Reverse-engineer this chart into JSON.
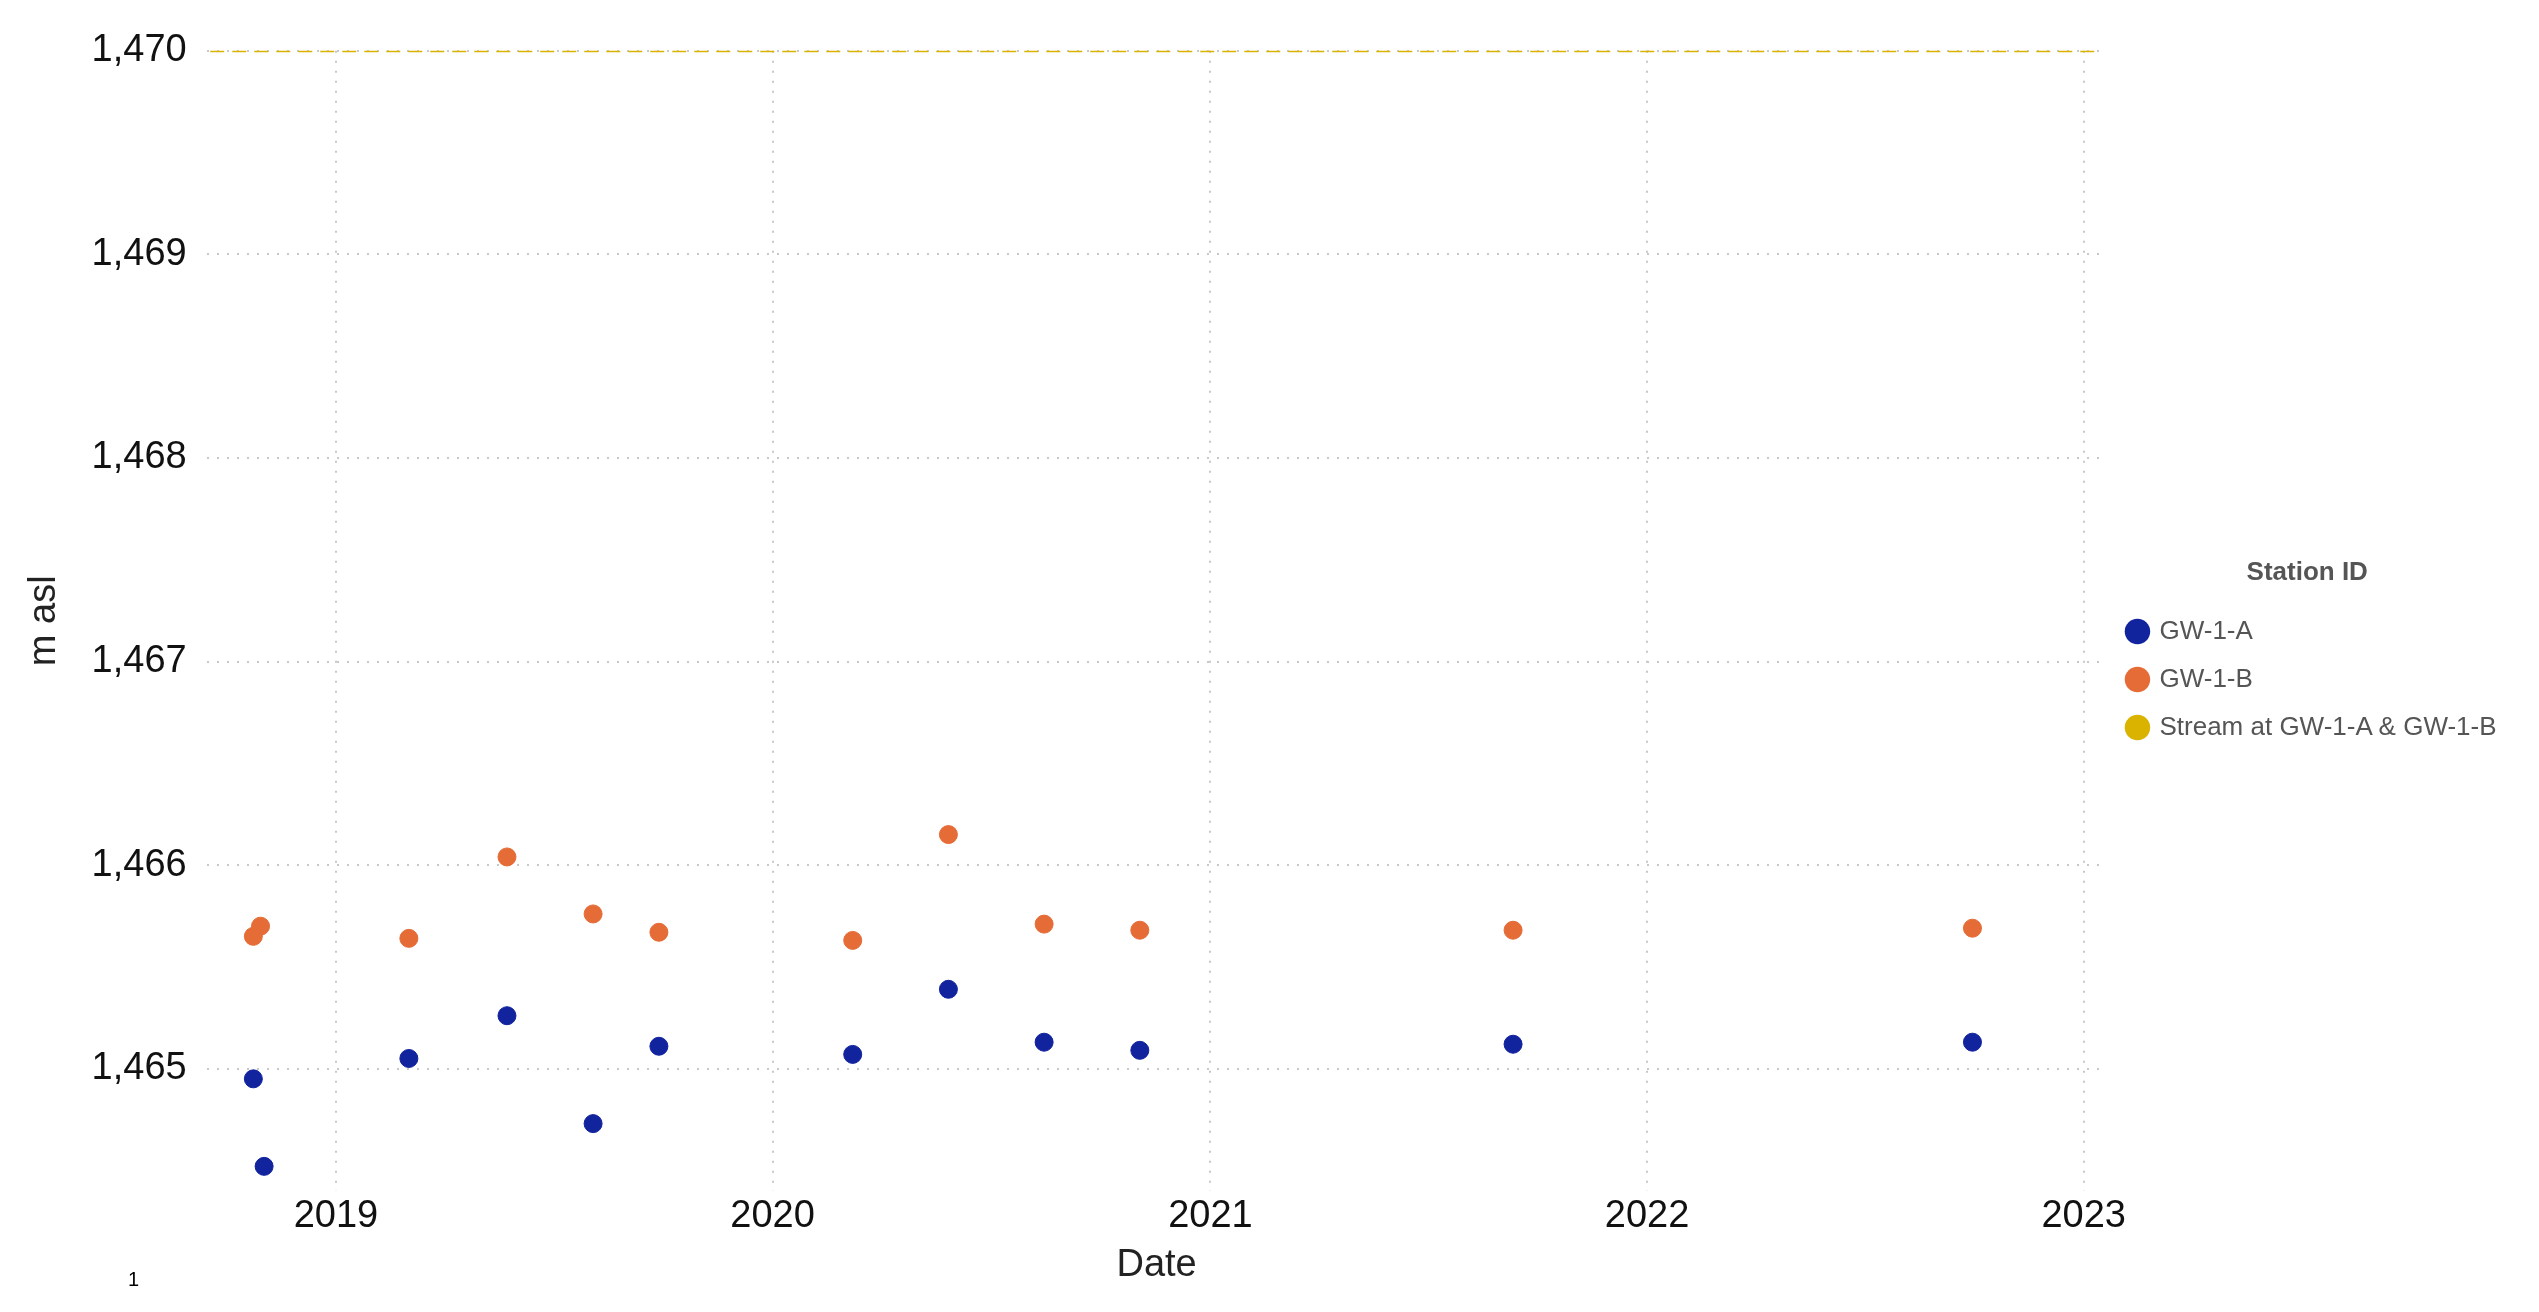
{
  "chart_data": {
    "type": "scatter",
    "xlabel": "Date",
    "ylabel": "m asl",
    "legend_title": "Station ID",
    "series": [
      {
        "name": "GW-1-A",
        "color": "#12239e",
        "x": [
          "2018-10-24",
          "2018-11-02",
          "2019-03-03",
          "2019-05-24",
          "2019-08-04",
          "2019-09-28",
          "2020-03-08",
          "2020-05-27",
          "2020-08-15",
          "2020-11-03",
          "2021-09-11",
          "2022-09-30"
        ],
        "values": [
          1464.95,
          1464.52,
          1465.05,
          1465.26,
          1464.73,
          1465.11,
          1465.07,
          1465.39,
          1465.13,
          1465.09,
          1465.12,
          1465.13
        ]
      },
      {
        "name": "GW-1-B",
        "color": "#e66c37",
        "x": [
          "2018-10-24",
          "2018-10-30",
          "2019-03-03",
          "2019-05-24",
          "2019-08-04",
          "2019-09-28",
          "2020-03-08",
          "2020-05-27",
          "2020-08-15",
          "2020-11-03",
          "2021-09-11",
          "2022-09-30"
        ],
        "values": [
          1465.65,
          1465.7,
          1465.64,
          1466.04,
          1465.76,
          1465.67,
          1465.63,
          1466.15,
          1465.71,
          1465.68,
          1465.68,
          1465.69
        ]
      },
      {
        "name": "Stream at GW-1-A & GW-1-B",
        "color": "#d9b300",
        "type": "line",
        "line_style": "dashed",
        "marker": "none",
        "x": [
          "2018-09-18",
          "2023-01-16"
        ],
        "values": [
          1470,
          1470
        ]
      }
    ],
    "xlim": [
      "2018-09-15",
      "2023-01-20"
    ],
    "xticks": [
      {
        "value": "2019-01-01",
        "label": "2019"
      },
      {
        "value": "2020-01-01",
        "label": "2020"
      },
      {
        "value": "2021-01-01",
        "label": "2021"
      },
      {
        "value": "2022-01-01",
        "label": "2022"
      },
      {
        "value": "2023-01-01",
        "label": "2023"
      }
    ],
    "ylim": [
      1464.4,
      1470
    ],
    "yticks": [
      {
        "value": 1465,
        "label": "1,465"
      },
      {
        "value": 1466,
        "label": "1,466"
      },
      {
        "value": 1467,
        "label": "1,467"
      },
      {
        "value": 1468,
        "label": "1,468"
      },
      {
        "value": 1469,
        "label": "1,469"
      },
      {
        "value": 1470,
        "label": "1,470"
      }
    ],
    "grid": true,
    "legend": "right",
    "marker": "circle",
    "annotations": [
      "1"
    ]
  }
}
